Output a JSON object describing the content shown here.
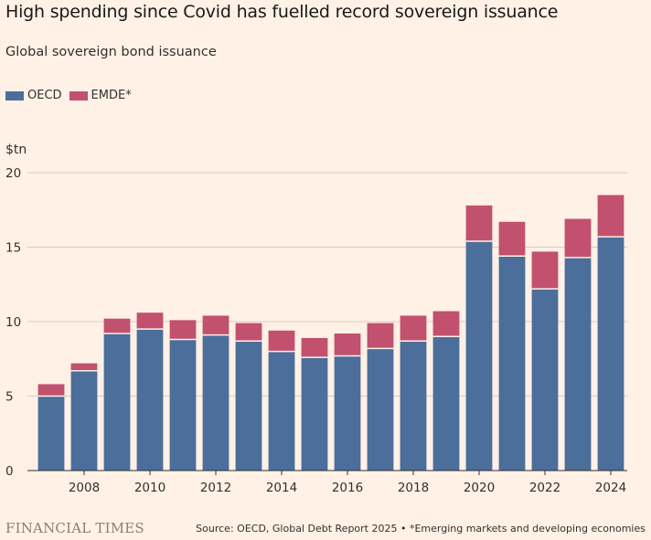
{
  "title": "High spending since Covid has fuelled record sovereign issuance",
  "subtitle": "Global sovereign bond issuance",
  "legend": [
    {
      "label": "OECD",
      "color": "#4b6e9b"
    },
    {
      "label": "EMDE*",
      "color": "#c2506f"
    }
  ],
  "footer": {
    "brand": "FINANCIAL TIMES",
    "source": "Source: OECD, Global Debt Report 2025 • *Emerging markets and developing economies"
  },
  "chart_data": {
    "type": "bar",
    "stacked": true,
    "title": "High spending since Covid has fuelled record sovereign issuance",
    "subtitle": "Global sovereign bond issuance",
    "ylabel": "$tn",
    "xlabel": "",
    "ylim": [
      0,
      20
    ],
    "yticks": [
      0,
      5,
      10,
      15,
      20
    ],
    "xtick_labels": [
      "2008",
      "2010",
      "2012",
      "2014",
      "2016",
      "2018",
      "2020",
      "2022",
      "2024"
    ],
    "categories": [
      "2007",
      "2008",
      "2009",
      "2010",
      "2011",
      "2012",
      "2013",
      "2014",
      "2015",
      "2016",
      "2017",
      "2018",
      "2019",
      "2020",
      "2021",
      "2022",
      "2023",
      "2024"
    ],
    "series": [
      {
        "name": "OECD",
        "color": "#4b6e9b",
        "values": [
          5.0,
          6.7,
          9.2,
          9.5,
          8.8,
          9.1,
          8.7,
          8.0,
          7.6,
          7.7,
          8.2,
          8.7,
          9.0,
          15.4,
          14.4,
          12.2,
          14.3,
          15.7
        ]
      },
      {
        "name": "EMDE*",
        "color": "#c2506f",
        "values": [
          0.8,
          0.5,
          1.0,
          1.1,
          1.3,
          1.3,
          1.2,
          1.4,
          1.3,
          1.5,
          1.7,
          1.7,
          1.7,
          2.4,
          2.3,
          2.5,
          2.6,
          2.8
        ]
      }
    ],
    "grid": true,
    "legend_position": "top-left"
  }
}
